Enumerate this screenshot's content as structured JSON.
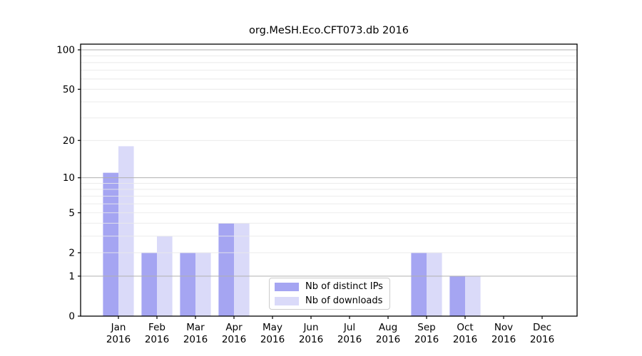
{
  "title": "org.MeSH.Eco.CFT073.db 2016",
  "chart_data": {
    "type": "bar",
    "title": "org.MeSH.Eco.CFT073.db 2016",
    "y_scale": "log1p",
    "categories": [
      "Jan",
      "Feb",
      "Mar",
      "Apr",
      "May",
      "Jun",
      "Jul",
      "Aug",
      "Sep",
      "Oct",
      "Nov",
      "Dec"
    ],
    "year": "2016",
    "series": [
      {
        "name": "Nb of distinct IPs",
        "color": "#a5a5f2",
        "values": [
          11,
          2,
          2,
          4,
          0,
          0,
          0,
          0,
          2,
          1,
          0,
          0
        ]
      },
      {
        "name": "Nb of downloads",
        "color": "#dadaf9",
        "values": [
          18,
          3,
          2,
          4,
          0,
          0,
          0,
          0,
          2,
          1,
          0,
          0
        ]
      }
    ],
    "yticks": [
      0,
      1,
      2,
      5,
      10,
      20,
      50,
      100
    ],
    "ylim": [
      0,
      110
    ],
    "grid": {
      "major": [
        1,
        10,
        100
      ],
      "minor": [
        2,
        3,
        4,
        5,
        6,
        7,
        8,
        9,
        20,
        30,
        40,
        50,
        60,
        70,
        80,
        90
      ],
      "grid_above_bars": true
    },
    "legend": {
      "position": "inside-bottom-center"
    }
  },
  "colors": {
    "background": "#ffffff",
    "axis": "#000000",
    "text": "#000000",
    "major_grid": "#b0b0b0",
    "minor_grid": "#e9e9e9",
    "legend_border": "#cccccc"
  }
}
